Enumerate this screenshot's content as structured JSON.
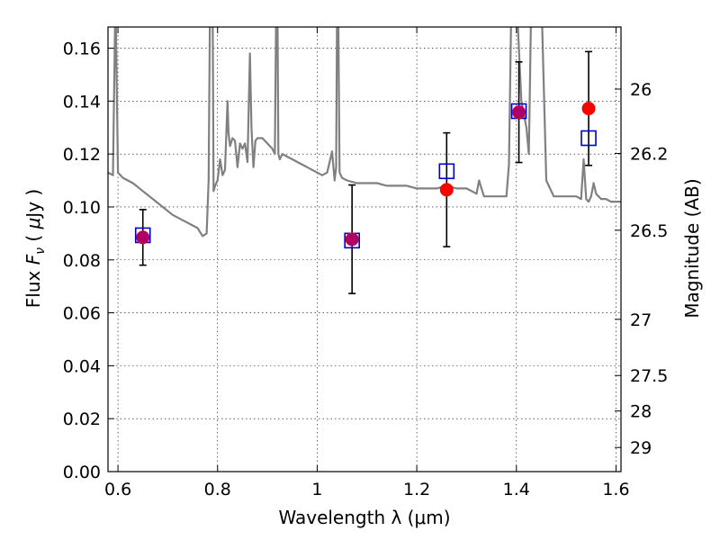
{
  "chart_data": {
    "type": "scatter",
    "xlabel": "Wavelength  λ (μm)",
    "ylabel": "Flux  F_ν  ( μJy )",
    "ylabel_parts": [
      "Flux  ",
      "F",
      "ν",
      "  ( ",
      "μ",
      "Jy )"
    ],
    "y2label": "Magnitude (AB)",
    "xlim": [
      0.58,
      1.61
    ],
    "ylim": [
      0.0,
      0.168
    ],
    "x_ticks": [
      0.6,
      0.8,
      1.0,
      1.2,
      1.4,
      1.6
    ],
    "x_tick_labels": [
      "0.6",
      "0.8",
      "1",
      "1.2",
      "1.4",
      "1.6"
    ],
    "y_ticks": [
      0.0,
      0.02,
      0.04,
      0.06,
      0.08,
      0.1,
      0.12,
      0.14,
      0.16
    ],
    "y_tick_labels": [
      "0.00",
      "0.02",
      "0.04",
      "0.06",
      "0.08",
      "0.10",
      "0.12",
      "0.14",
      "0.16"
    ],
    "y2_ticks": [
      26,
      26.2,
      26.5,
      27,
      27.5,
      28,
      29
    ],
    "y2_tick_labels": [
      "26",
      "26.2",
      "26.5",
      "27",
      "27.5",
      "28",
      "29"
    ],
    "grid": true,
    "observed": {
      "marker": "filled-circle",
      "color": "#ff0000",
      "x": [
        0.65,
        1.07,
        1.26,
        1.405,
        1.545
      ],
      "y": [
        0.0885,
        0.0878,
        0.1065,
        0.1358,
        0.1372
      ],
      "yerr": [
        0.0105,
        0.0205,
        0.0215,
        0.019,
        0.0215
      ]
    },
    "model": {
      "marker": "open-square",
      "color": "#0000cc",
      "x": [
        0.65,
        1.07,
        1.26,
        1.405,
        1.545
      ],
      "y": [
        0.0893,
        0.0873,
        0.1135,
        0.1362,
        0.126
      ]
    },
    "spectrum": {
      "color": "#808080",
      "x": [
        0.58,
        0.59,
        0.595,
        0.6,
        0.61,
        0.63,
        0.65,
        0.67,
        0.69,
        0.71,
        0.73,
        0.75,
        0.76,
        0.77,
        0.778,
        0.782,
        0.785,
        0.79,
        0.792,
        0.795,
        0.8,
        0.805,
        0.81,
        0.815,
        0.82,
        0.822,
        0.825,
        0.83,
        0.835,
        0.84,
        0.845,
        0.85,
        0.855,
        0.86,
        0.865,
        0.868,
        0.872,
        0.876,
        0.88,
        0.89,
        0.9,
        0.91,
        0.915,
        0.918,
        0.92,
        0.922,
        0.925,
        0.93,
        0.94,
        0.95,
        0.96,
        0.97,
        0.98,
        0.99,
        1.0,
        1.01,
        1.02,
        1.03,
        1.035,
        1.038,
        1.04,
        1.042,
        1.045,
        1.05,
        1.06,
        1.08,
        1.1,
        1.12,
        1.14,
        1.16,
        1.18,
        1.2,
        1.22,
        1.24,
        1.26,
        1.28,
        1.3,
        1.31,
        1.32,
        1.325,
        1.33,
        1.335,
        1.34,
        1.36,
        1.38,
        1.385,
        1.39,
        1.395,
        1.4,
        1.41,
        1.42,
        1.425,
        1.43,
        1.44,
        1.45,
        1.46,
        1.47,
        1.475,
        1.48,
        1.49,
        1.5,
        1.51,
        1.52,
        1.53,
        1.535,
        1.54,
        1.545,
        1.55,
        1.555,
        1.56,
        1.57,
        1.58,
        1.59,
        1.6,
        1.61
      ],
      "y": [
        0.113,
        0.112,
        0.18,
        0.113,
        0.111,
        0.109,
        0.106,
        0.103,
        0.1,
        0.097,
        0.095,
        0.093,
        0.092,
        0.089,
        0.09,
        0.11,
        0.18,
        0.18,
        0.106,
        0.108,
        0.11,
        0.118,
        0.112,
        0.114,
        0.14,
        0.128,
        0.123,
        0.126,
        0.125,
        0.115,
        0.124,
        0.122,
        0.124,
        0.117,
        0.158,
        0.13,
        0.115,
        0.125,
        0.126,
        0.126,
        0.124,
        0.122,
        0.12,
        0.18,
        0.18,
        0.12,
        0.118,
        0.12,
        0.119,
        0.118,
        0.117,
        0.116,
        0.115,
        0.114,
        0.113,
        0.112,
        0.113,
        0.121,
        0.11,
        0.115,
        0.18,
        0.18,
        0.113,
        0.111,
        0.11,
        0.109,
        0.109,
        0.109,
        0.108,
        0.108,
        0.108,
        0.107,
        0.107,
        0.107,
        0.108,
        0.107,
        0.107,
        0.106,
        0.105,
        0.11,
        0.107,
        0.104,
        0.104,
        0.104,
        0.104,
        0.116,
        0.18,
        0.18,
        0.18,
        0.14,
        0.13,
        0.12,
        0.18,
        0.18,
        0.18,
        0.11,
        0.106,
        0.104,
        0.104,
        0.104,
        0.104,
        0.104,
        0.104,
        0.103,
        0.118,
        0.103,
        0.102,
        0.104,
        0.109,
        0.105,
        0.103,
        0.103,
        0.102,
        0.102,
        0.102
      ]
    }
  }
}
